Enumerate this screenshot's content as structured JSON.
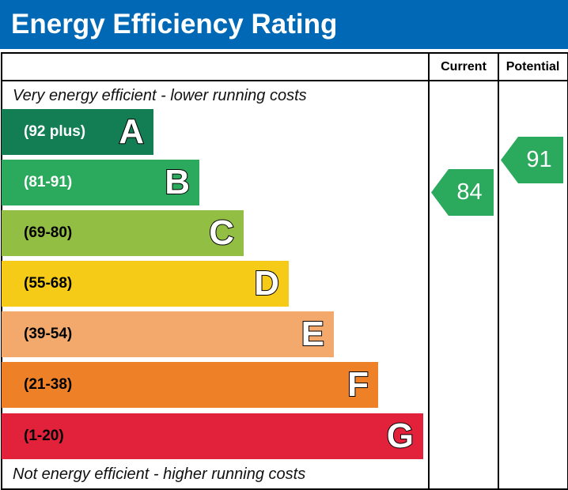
{
  "header": {
    "title": "Energy Efficiency Rating"
  },
  "columns": {
    "current": "Current",
    "potential": "Potential"
  },
  "captions": {
    "top": "Very energy efficient - lower running costs",
    "bottom": "Not energy efficient - higher running costs"
  },
  "chart_data": {
    "type": "bar",
    "categories": [
      "A",
      "B",
      "C",
      "D",
      "E",
      "F",
      "G"
    ],
    "ranges": [
      "(92 plus)",
      "(81-91)",
      "(69-80)",
      "(55-68)",
      "(39-54)",
      "(21-38)",
      "(1-20)"
    ],
    "colors": [
      "#137e54",
      "#2ba95c",
      "#92be44",
      "#f5cb18",
      "#f2a96b",
      "#ee8128",
      "#e2213b"
    ],
    "range_text_colors": [
      "#ffffff",
      "#ffffff",
      "#000000",
      "#000000",
      "#000000",
      "#000000",
      "#000000"
    ],
    "current": {
      "value": 84,
      "band": "B",
      "color": "#2ba95c"
    },
    "potential": {
      "value": 91,
      "band": "B",
      "color": "#2ba95c"
    }
  }
}
